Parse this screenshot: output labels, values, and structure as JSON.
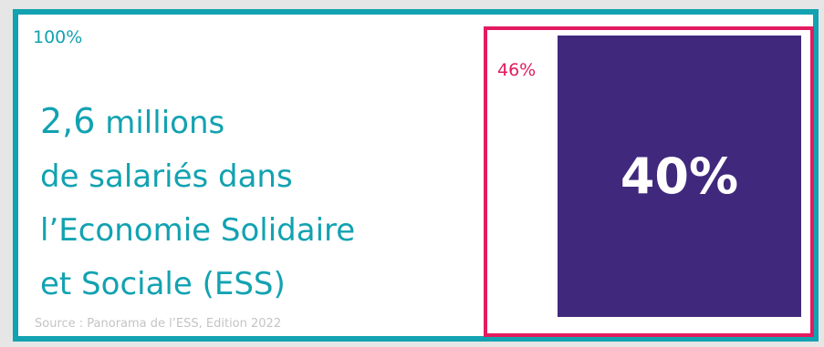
{
  "top_label": "100%",
  "headline": {
    "number": "2,6",
    "line1_rest": " millions",
    "line2": "de salariés dans",
    "line3": "l’Economie Solidaire",
    "line4": "et Sociale (ESS)"
  },
  "source": "Source : Panorama de l’ESS, Edition  2022",
  "frame_label": "46%",
  "bar_value_label": "40%",
  "colors": {
    "teal": "#12a2b1",
    "magenta": "#e31b60",
    "purple": "#40287c",
    "background": "#e6e6e6"
  }
}
